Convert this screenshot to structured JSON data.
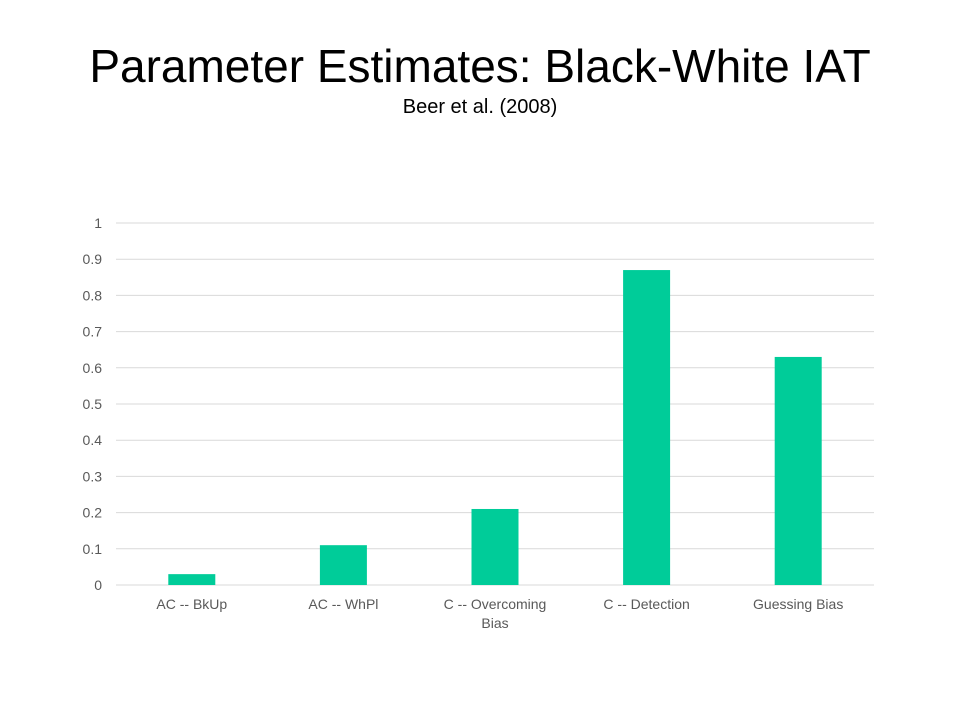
{
  "slide": {
    "title": "Parameter Estimates: Black-White IAT",
    "subtitle": "Beer et al. (2008)"
  },
  "colors": {
    "bar": "#00CC99",
    "gridline": "#D9D9D9",
    "tick_text": "#595959"
  },
  "chart_data": {
    "type": "bar",
    "categories": [
      [
        "AC -- BkUp"
      ],
      [
        "AC -- WhPl"
      ],
      [
        "C -- Overcoming",
        "Bias"
      ],
      [
        "C -- Detection"
      ],
      [
        "Guessing Bias"
      ]
    ],
    "values": [
      0.03,
      0.11,
      0.21,
      0.87,
      0.63
    ],
    "ylim": [
      0,
      1
    ],
    "yticks": [
      "0",
      "0.1",
      "0.2",
      "0.3",
      "0.4",
      "0.5",
      "0.6",
      "0.7",
      "0.8",
      "0.9",
      "1"
    ],
    "grid": true,
    "legend": "none"
  }
}
